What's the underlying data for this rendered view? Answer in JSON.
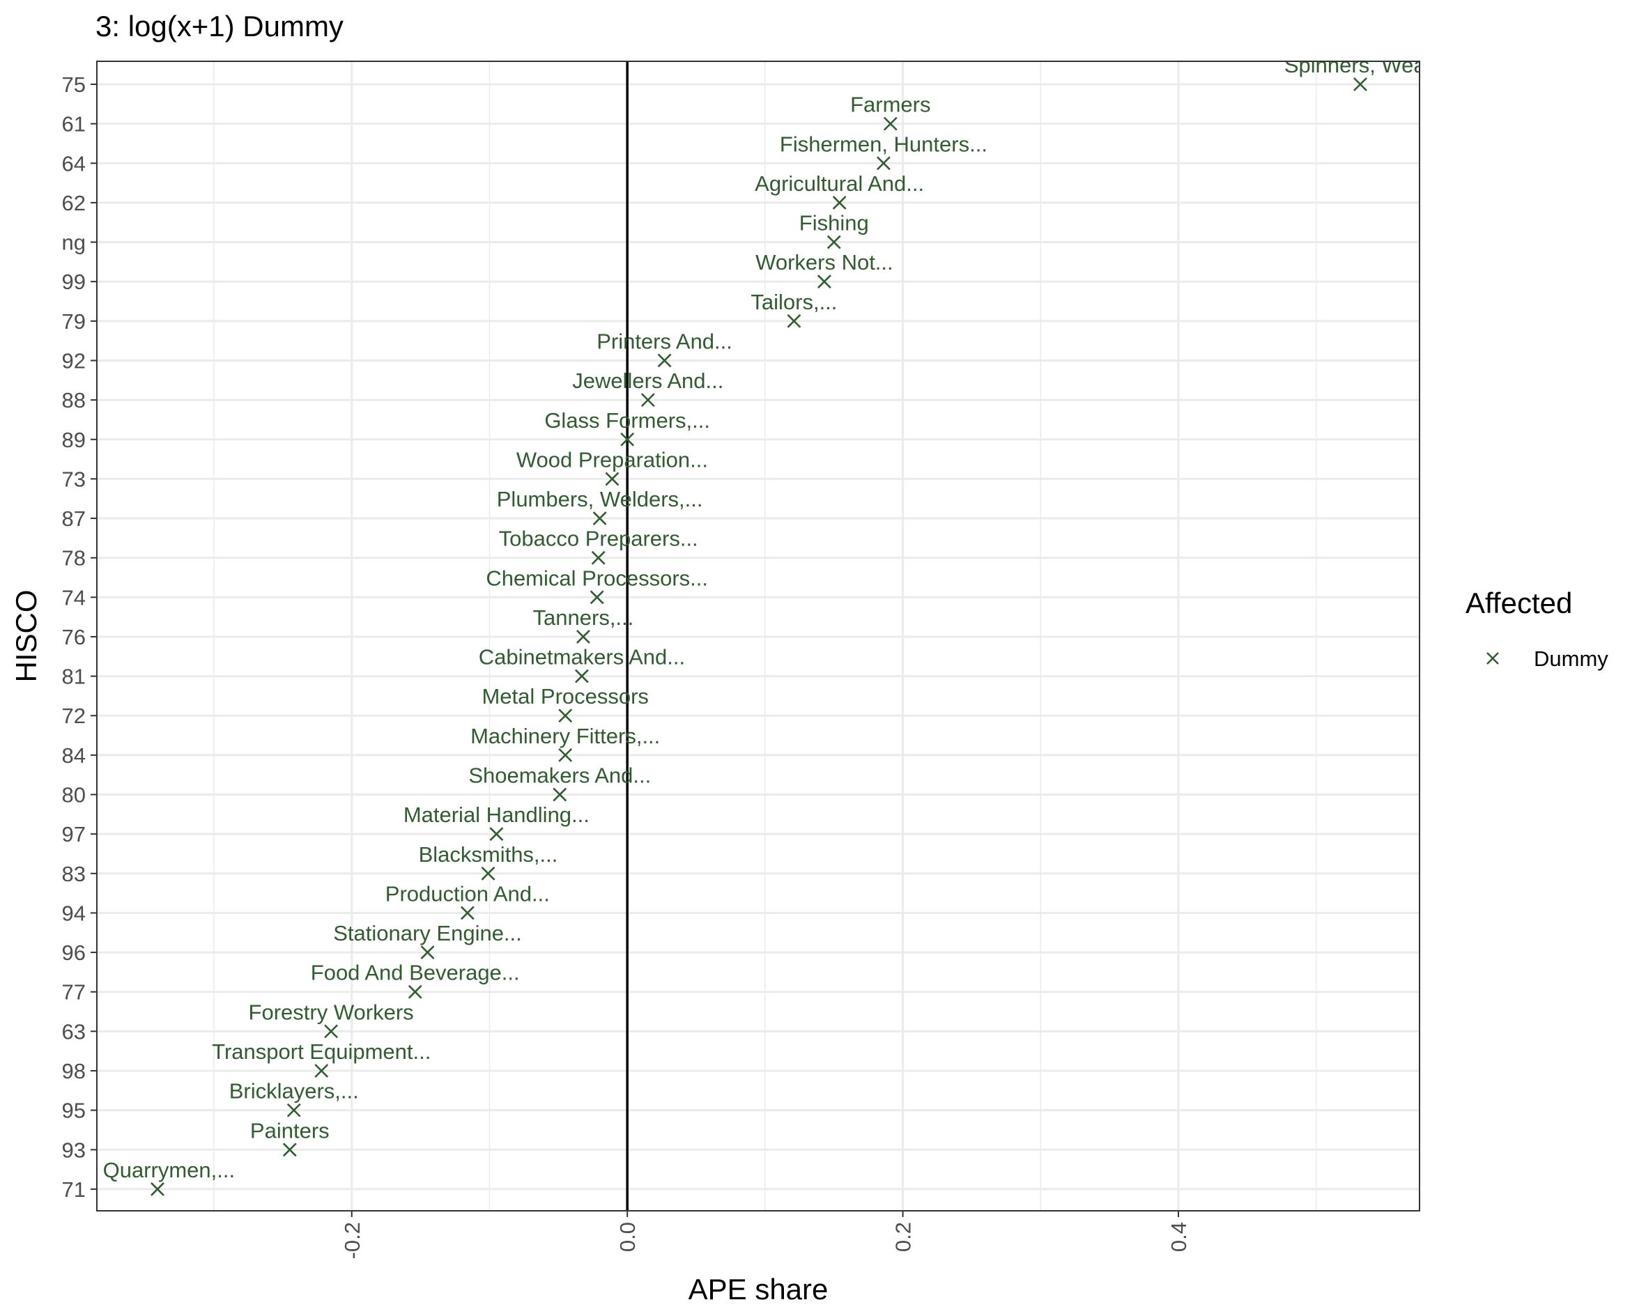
{
  "chart_data": {
    "type": "scatter",
    "title": "3: log(x+1) Dummy",
    "xlabel": "APE share",
    "ylabel": "HISCO",
    "xlim": [
      -0.385,
      0.575
    ],
    "xticks": [
      -0.2,
      0.0,
      0.2,
      0.4
    ],
    "xtick_labels": [
      "-0.2",
      "0.0",
      "0.2",
      "0.4"
    ],
    "reference_line_x": 0.0,
    "grid": true,
    "marker": "x",
    "color": "#2e5e2e",
    "legend": {
      "title": "Affected",
      "position": "right",
      "entries": [
        {
          "label": "Dummy",
          "marker": "x",
          "color": "#2e5e2e"
        }
      ]
    },
    "categories": [
      "75",
      "61",
      "64",
      "62",
      "ng",
      "99",
      "79",
      "92",
      "88",
      "89",
      "73",
      "87",
      "78",
      "74",
      "76",
      "81",
      "72",
      "84",
      "80",
      "97",
      "83",
      "94",
      "96",
      "77",
      "63",
      "98",
      "95",
      "93",
      "71"
    ],
    "points": [
      {
        "y": "75",
        "x": 0.532,
        "label": "Spinners, Weav"
      },
      {
        "y": "61",
        "x": 0.191,
        "label": "Farmers"
      },
      {
        "y": "64",
        "x": 0.186,
        "label": "Fishermen, Hunters..."
      },
      {
        "y": "62",
        "x": 0.154,
        "label": "Agricultural And..."
      },
      {
        "y": "ng",
        "x": 0.15,
        "label": "Fishing"
      },
      {
        "y": "99",
        "x": 0.143,
        "label": "Workers Not..."
      },
      {
        "y": "79",
        "x": 0.121,
        "label": "Tailors,..."
      },
      {
        "y": "92",
        "x": 0.027,
        "label": "Printers And..."
      },
      {
        "y": "88",
        "x": 0.015,
        "label": "Jewellers And..."
      },
      {
        "y": "89",
        "x": 0.0,
        "label": "Glass Formers,..."
      },
      {
        "y": "73",
        "x": -0.011,
        "label": "Wood Preparation..."
      },
      {
        "y": "87",
        "x": -0.02,
        "label": "Plumbers, Welders,..."
      },
      {
        "y": "78",
        "x": -0.021,
        "label": "Tobacco Preparers..."
      },
      {
        "y": "74",
        "x": -0.022,
        "label": "Chemical Processors..."
      },
      {
        "y": "76",
        "x": -0.032,
        "label": "Tanners,..."
      },
      {
        "y": "81",
        "x": -0.033,
        "label": "Cabinetmakers And..."
      },
      {
        "y": "72",
        "x": -0.045,
        "label": "Metal Processors"
      },
      {
        "y": "84",
        "x": -0.045,
        "label": "Machinery Fitters,..."
      },
      {
        "y": "80",
        "x": -0.049,
        "label": "Shoemakers And..."
      },
      {
        "y": "97",
        "x": -0.095,
        "label": "Material Handling..."
      },
      {
        "y": "83",
        "x": -0.101,
        "label": "Blacksmiths,..."
      },
      {
        "y": "94",
        "x": -0.116,
        "label": "Production And..."
      },
      {
        "y": "96",
        "x": -0.145,
        "label": "Stationary Engine..."
      },
      {
        "y": "77",
        "x": -0.154,
        "label": "Food And Beverage..."
      },
      {
        "y": "63",
        "x": -0.215,
        "label": "Forestry Workers"
      },
      {
        "y": "98",
        "x": -0.222,
        "label": "Transport Equipment..."
      },
      {
        "y": "95",
        "x": -0.242,
        "label": "Bricklayers,..."
      },
      {
        "y": "93",
        "x": -0.245,
        "label": "Painters"
      },
      {
        "y": "71",
        "x": -0.341,
        "label": "s, Quarrymen,..."
      }
    ]
  }
}
